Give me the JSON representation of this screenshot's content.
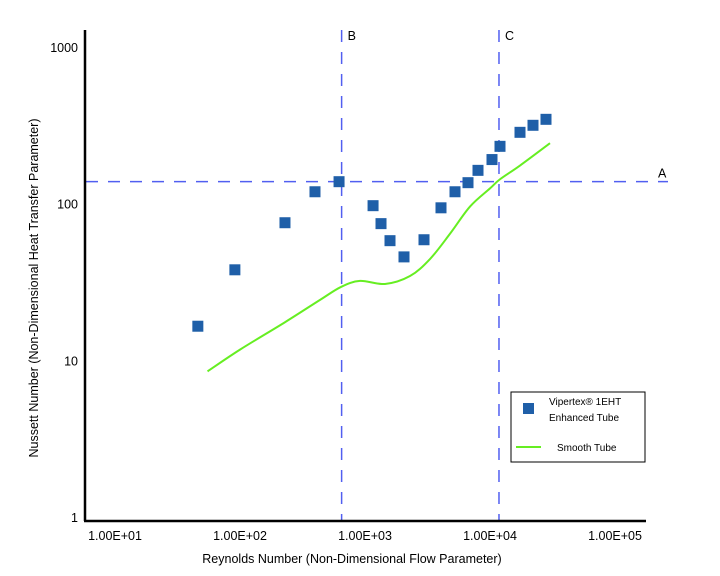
{
  "chart_data": {
    "type": "scatter",
    "title": "",
    "xlabel": "Reynolds Number (Non-Dimensional Flow Parameter)",
    "ylabel": "Nussett Number (Non-Dimensional Heat Transfer Parameter)",
    "xscale": "log",
    "yscale": "log",
    "xlim": [
      10,
      100000
    ],
    "ylim": [
      1,
      1000
    ],
    "x_ticks": [
      {
        "value": 10,
        "label": "1.00E+01"
      },
      {
        "value": 100,
        "label": "1.00E+02"
      },
      {
        "value": 1000,
        "label": "1.00E+03"
      },
      {
        "value": 10000,
        "label": "1.00E+04"
      },
      {
        "value": 100000,
        "label": "1.00E+05"
      }
    ],
    "y_ticks": [
      {
        "value": 1,
        "label": "1"
      },
      {
        "value": 10,
        "label": "10"
      },
      {
        "value": 100,
        "label": "100"
      },
      {
        "value": 1000,
        "label": "1000"
      }
    ],
    "grid": false,
    "legend_position": "bottom-right",
    "series": [
      {
        "name": "Vipertex® 1EHT Enhanced Tube",
        "legend_lines": [
          "Vipertex® 1EHT",
          "Enhanced Tube"
        ],
        "kind": "scatter",
        "marker": "square",
        "color": "#1f5fa8",
        "points": [
          {
            "x": 46,
            "y": 16.5
          },
          {
            "x": 91,
            "y": 37.8
          },
          {
            "x": 229,
            "y": 75.5
          },
          {
            "x": 398,
            "y": 119
          },
          {
            "x": 620,
            "y": 138
          },
          {
            "x": 1160,
            "y": 97
          },
          {
            "x": 1343,
            "y": 74.5
          },
          {
            "x": 1585,
            "y": 58
          },
          {
            "x": 2051,
            "y": 45.7
          },
          {
            "x": 2965,
            "y": 58.8
          },
          {
            "x": 4055,
            "y": 94
          },
          {
            "x": 5248,
            "y": 119
          },
          {
            "x": 6668,
            "y": 136
          },
          {
            "x": 8017,
            "y": 163
          },
          {
            "x": 10375,
            "y": 191
          },
          {
            "x": 12023,
            "y": 232
          },
          {
            "x": 17378,
            "y": 285
          },
          {
            "x": 22080,
            "y": 316
          },
          {
            "x": 28054,
            "y": 345
          }
        ]
      },
      {
        "name": "Smooth Tube",
        "legend_lines": [
          "Smooth Tube"
        ],
        "kind": "line",
        "color": "#66ee22",
        "points": [
          {
            "x": 55,
            "y": 8.5
          },
          {
            "x": 100,
            "y": 11.7
          },
          {
            "x": 229,
            "y": 17.5
          },
          {
            "x": 437,
            "y": 24.3
          },
          {
            "x": 643,
            "y": 29.4
          },
          {
            "x": 912,
            "y": 32.1
          },
          {
            "x": 1445,
            "y": 30.7
          },
          {
            "x": 2291,
            "y": 34.5
          },
          {
            "x": 3311,
            "y": 44.3
          },
          {
            "x": 4786,
            "y": 64.2
          },
          {
            "x": 6918,
            "y": 95.7
          },
          {
            "x": 10000,
            "y": 125
          },
          {
            "x": 12023,
            "y": 143
          },
          {
            "x": 17378,
            "y": 175
          },
          {
            "x": 30200,
            "y": 243
          }
        ]
      }
    ],
    "reference_lines": [
      {
        "label": "A",
        "orientation": "horizontal",
        "value": 138,
        "color": "#3344ee"
      },
      {
        "label": "B",
        "orientation": "vertical",
        "value": 650,
        "color": "#3344ee"
      },
      {
        "label": "C",
        "orientation": "vertical",
        "value": 11800,
        "color": "#3344ee"
      }
    ]
  }
}
